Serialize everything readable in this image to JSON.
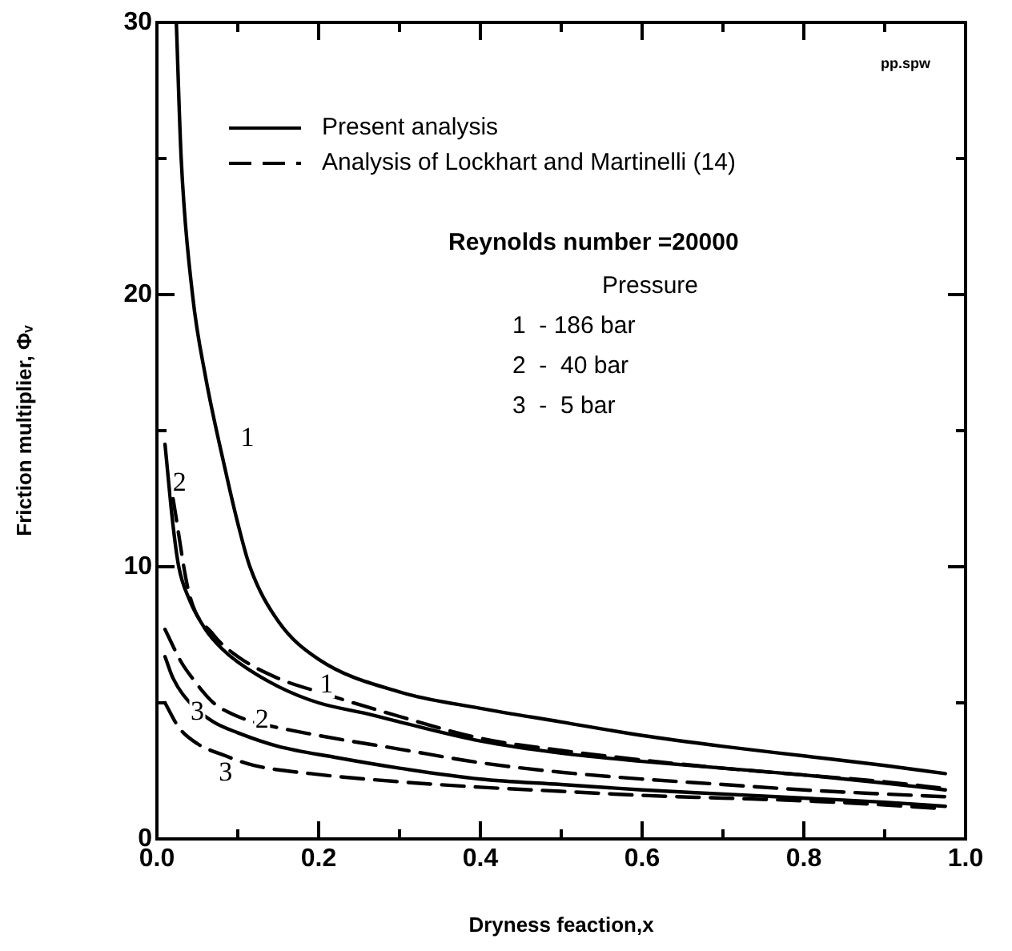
{
  "chart_data": {
    "type": "line",
    "xlabel": "Dryness feaction,x",
    "ylabel": "Friction multiplier, Φᵥ",
    "xlim": [
      0,
      1
    ],
    "ylim": [
      0,
      30
    ],
    "xticks": [
      {
        "value": 0,
        "label": "0.0"
      },
      {
        "value": 0.1,
        "label": null
      },
      {
        "value": 0.2,
        "label": "0.2"
      },
      {
        "value": 0.3,
        "label": null
      },
      {
        "value": 0.4,
        "label": "0.4"
      },
      {
        "value": 0.5,
        "label": null
      },
      {
        "value": 0.6,
        "label": "0.6"
      },
      {
        "value": 0.7,
        "label": null
      },
      {
        "value": 0.8,
        "label": "0.8"
      },
      {
        "value": 0.9,
        "label": null
      },
      {
        "value": 1,
        "label": "1.0"
      }
    ],
    "yticks": [
      0,
      {
        "value": 5,
        "label": null
      },
      10,
      {
        "value": 15,
        "label": null
      },
      20,
      {
        "value": 25,
        "label": null
      },
      30
    ],
    "grid": false,
    "legend": "top left",
    "marker": "none",
    "series": [
      {
        "name": "Present analysis",
        "color": "#000000",
        "line_style": "solid",
        "x": [
          0.024,
          0.03,
          0.044,
          0.06,
          0.085,
          0.1,
          0.115,
          0.15,
          0.2,
          0.3,
          0.4,
          0.5,
          0.6,
          0.7,
          0.8,
          0.9,
          0.975
        ],
        "values": [
          30,
          25,
          20,
          17,
          13.5,
          11.6,
          10,
          8,
          6.6,
          5.4,
          4.8,
          4.3,
          3.8,
          3.4,
          3.05,
          2.7,
          2.4
        ]
      },
      {
        "color": "#000000",
        "line_style": "solid",
        "x": [
          0.01,
          0.02,
          0.027,
          0.04,
          0.06,
          0.08,
          0.1,
          0.15,
          0.2,
          0.26,
          0.3,
          0.4,
          0.5,
          0.6,
          0.7,
          0.8,
          0.9,
          0.975
        ],
        "values": [
          14.5,
          11.5,
          10,
          8.8,
          7.7,
          7,
          6.5,
          5.6,
          5,
          4.6,
          4.3,
          3.6,
          3.15,
          2.85,
          2.6,
          2.35,
          2.05,
          1.8
        ]
      },
      {
        "color": "#000000",
        "line_style": "solid",
        "x": [
          0.01,
          0.02,
          0.044,
          0.07,
          0.1,
          0.15,
          0.22,
          0.3,
          0.4,
          0.5,
          0.6,
          0.7,
          0.8,
          0.9,
          0.975
        ],
        "values": [
          6.7,
          5.9,
          4.9,
          4.3,
          3.9,
          3.4,
          3,
          2.6,
          2.2,
          2,
          1.8,
          1.65,
          1.5,
          1.35,
          1.2
        ]
      },
      {
        "name": "Analysis of Lockhart and Martinelli (14)",
        "color": "#000000",
        "line_style": "dashed",
        "x": [
          0.02,
          0.04,
          0.07,
          0.1,
          0.15,
          0.2,
          0.3,
          0.4,
          0.5,
          0.6,
          0.7,
          0.8,
          0.9,
          0.975
        ],
        "values": [
          12.5,
          9,
          7.5,
          6.7,
          5.9,
          5.4,
          4.5,
          3.7,
          3.25,
          2.9,
          2.6,
          2.35,
          2.1,
          1.85
        ]
      },
      {
        "color": "#000000",
        "line_style": "dashed",
        "x": [
          0.01,
          0.03,
          0.044,
          0.07,
          0.1,
          0.12,
          0.2,
          0.3,
          0.4,
          0.5,
          0.6,
          0.7,
          0.8,
          0.9,
          0.975
        ],
        "values": [
          7.7,
          6.5,
          5.9,
          5,
          4.5,
          4.3,
          3.8,
          3.3,
          2.8,
          2.45,
          2.2,
          2,
          1.8,
          1.65,
          1.55
        ]
      },
      {
        "color": "#000000",
        "line_style": "dashed",
        "x": [
          0.01,
          0.027,
          0.05,
          0.085,
          0.12,
          0.19,
          0.3,
          0.4,
          0.5,
          0.6,
          0.7,
          0.8,
          0.9,
          0.975
        ],
        "values": [
          5,
          4.1,
          3.5,
          3.05,
          2.7,
          2.4,
          2.1,
          1.9,
          1.75,
          1.6,
          1.5,
          1.4,
          1.25,
          1.1
        ]
      }
    ],
    "annotations": [
      "pp.spw",
      "Reynolds number =20000",
      "Pressure",
      "1  - 186 bar",
      "2  -  40 bar",
      "3  -  5 bar",
      "1",
      "2",
      "3",
      "1",
      "2",
      "3"
    ]
  }
}
